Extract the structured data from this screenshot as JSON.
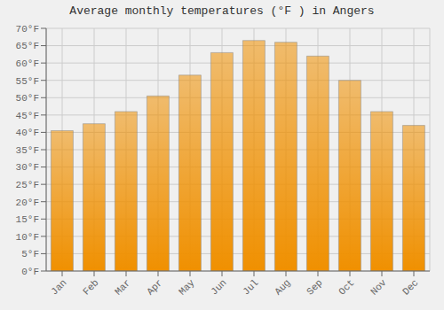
{
  "chart_data": {
    "type": "bar",
    "title": "Average monthly temperatures (°F ) in Angers",
    "categories": [
      "Jan",
      "Feb",
      "Mar",
      "Apr",
      "May",
      "Jun",
      "Jul",
      "Aug",
      "Sep",
      "Oct",
      "Nov",
      "Dec"
    ],
    "values": [
      40.5,
      42.5,
      46,
      50.5,
      56.5,
      63,
      66.5,
      66,
      62,
      55,
      46,
      42
    ],
    "color": "#F09000",
    "ylim": [
      0,
      70
    ],
    "yticks": [
      {
        "value": 0,
        "label": "0°F"
      },
      {
        "value": 5,
        "label": "5°F"
      },
      {
        "value": 10,
        "label": "10°F"
      },
      {
        "value": 15,
        "label": "15°F"
      },
      {
        "value": 20,
        "label": "20°F"
      },
      {
        "value": 25,
        "label": "25°F"
      },
      {
        "value": 30,
        "label": "30°F"
      },
      {
        "value": 35,
        "label": "35°F"
      },
      {
        "value": 40,
        "label": "40°F"
      },
      {
        "value": 45,
        "label": "45°F"
      },
      {
        "value": 50,
        "label": "50°F"
      },
      {
        "value": 55,
        "label": "55°F"
      },
      {
        "value": 60,
        "label": "60°F"
      },
      {
        "value": 65,
        "label": "65°F"
      },
      {
        "value": 70,
        "label": "70°F"
      }
    ],
    "grid": true
  }
}
